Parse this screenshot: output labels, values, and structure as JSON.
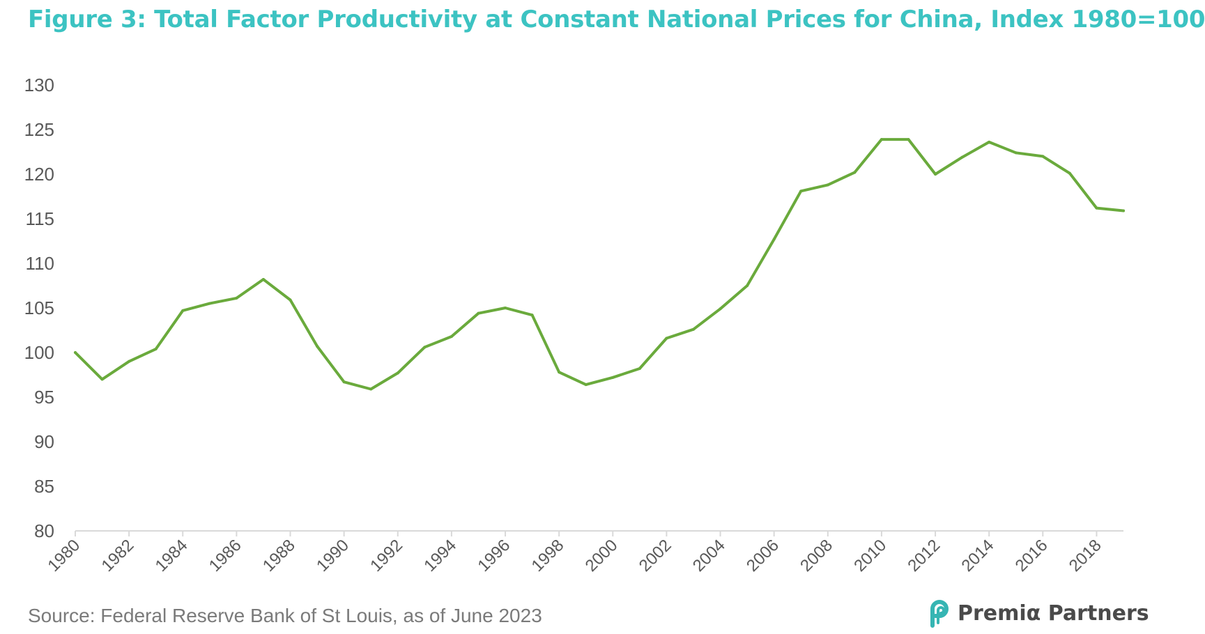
{
  "title": "Figure 3: Total Factor Productivity at Constant National Prices for China, Index 1980=100",
  "source": "Source: Federal Reserve Bank of St Louis, as of June 2023",
  "logo_text": "Premiα Partners",
  "colors": {
    "title": "#3cc3c2",
    "line": "#6aaa3c",
    "axis": "#d9d9d9",
    "logo_mark": "#36b5b3"
  },
  "chart_data": {
    "type": "line",
    "title": "Figure 3: Total Factor Productivity at Constant National Prices for China, Index 1980=100",
    "xlabel": "",
    "ylabel": "",
    "ylim": [
      80,
      130
    ],
    "yticks": [
      80,
      85,
      90,
      95,
      100,
      105,
      110,
      115,
      120,
      125,
      130
    ],
    "xlim": [
      1980,
      2019
    ],
    "xticks": [
      "1980",
      "1982",
      "1984",
      "1986",
      "1988",
      "1990",
      "1992",
      "1994",
      "1996",
      "1998",
      "2000",
      "2002",
      "2004",
      "2006",
      "2008",
      "2010",
      "2012",
      "2014",
      "2016",
      "2018"
    ],
    "grid": false,
    "legend": "none",
    "x": [
      1980,
      1981,
      1982,
      1983,
      1984,
      1985,
      1986,
      1987,
      1988,
      1989,
      1990,
      1991,
      1992,
      1993,
      1994,
      1995,
      1996,
      1997,
      1998,
      1999,
      2000,
      2001,
      2002,
      2003,
      2004,
      2005,
      2006,
      2007,
      2008,
      2009,
      2010,
      2011,
      2012,
      2013,
      2014,
      2015,
      2016,
      2017,
      2018,
      2019
    ],
    "series": [
      {
        "values": [
          100.0,
          97.0,
          99.0,
          100.4,
          104.7,
          105.5,
          106.1,
          108.2,
          105.9,
          100.7,
          96.7,
          95.9,
          97.7,
          100.6,
          101.8,
          104.4,
          105.0,
          104.2,
          97.8,
          96.4,
          97.2,
          98.2,
          101.6,
          102.6,
          104.9,
          107.5,
          112.7,
          118.1,
          118.8,
          120.2,
          123.9,
          123.9,
          120.0,
          121.9,
          123.6,
          122.4,
          122.0,
          120.1,
          116.2,
          115.9
        ]
      }
    ]
  }
}
